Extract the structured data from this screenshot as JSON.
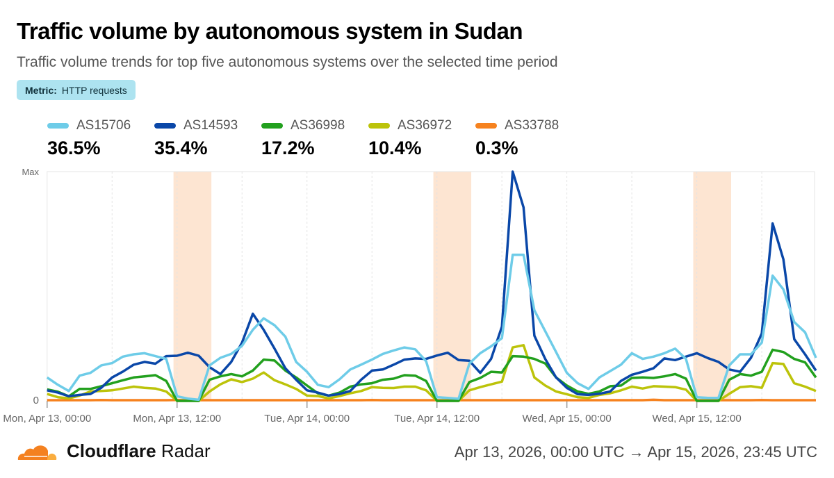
{
  "header": {
    "title": "Traffic volume by autonomous system in Sudan",
    "subtitle": "Traffic volume trends for top five autonomous systems over the selected time period",
    "metric_label": "Metric:",
    "metric_value": "HTTP requests"
  },
  "legend": [
    {
      "name": "AS15706",
      "share": "36.5%",
      "color": "#6ecce8"
    },
    {
      "name": "AS14593",
      "share": "35.4%",
      "color": "#0a47a8"
    },
    {
      "name": "AS36998",
      "share": "17.2%",
      "color": "#22a01e"
    },
    {
      "name": "AS36972",
      "share": "10.4%",
      "color": "#bcc30a"
    },
    {
      "name": "AS33788",
      "share": "0.3%",
      "color": "#f6821f"
    }
  ],
  "chart_data": {
    "type": "line",
    "title": "",
    "xlabel": "",
    "ylabel": "",
    "y_tick_labels": [
      "0",
      "Max"
    ],
    "ylim": [
      0,
      100
    ],
    "x_start": "2026-04-13T00:00Z",
    "x_interval": "1 hour",
    "x_tick_labels": [
      "Mon, Apr 13, 00:00",
      "Mon, Apr 13, 12:00",
      "Tue, Apr 14, 00:00",
      "Tue, Apr 14, 12:00",
      "Wed, Apr 15, 00:00",
      "Wed, Apr 15, 12:00"
    ],
    "x_tick_hours": [
      0,
      12,
      24,
      36,
      48,
      60
    ],
    "highlight_bands_hours": [
      [
        11.67,
        15.17
      ],
      [
        35.67,
        39.17
      ],
      [
        59.67,
        63.17
      ]
    ],
    "highlight_color": "#fde5d2",
    "grid": "vertical dashed",
    "series": [
      {
        "name": "AS15706",
        "color": "#6ecce8",
        "values": [
          10.2,
          7,
          4.3,
          11,
          12.2,
          15.5,
          16.5,
          19.3,
          20.3,
          20.8,
          19.5,
          18.3,
          2,
          1,
          0.5,
          15.5,
          18.8,
          20.5,
          24,
          31,
          36,
          33,
          28,
          17,
          12.7,
          7,
          6,
          9.4,
          13.7,
          15.8,
          18,
          20.5,
          22,
          23.3,
          22.5,
          17.3,
          1.6,
          1.3,
          0.9,
          16.3,
          20.8,
          23.8,
          27.4,
          63.7,
          63.7,
          39.5,
          30.4,
          21.3,
          12.2,
          7.7,
          5.2,
          10.2,
          13,
          15.8,
          20.8,
          18.3,
          19.3,
          20.8,
          22.8,
          18.3,
          1.6,
          1.3,
          1.3,
          15.5,
          20.3,
          20.3,
          25.4,
          54.6,
          48.6,
          34.4,
          29.9,
          18.8
        ]
      },
      {
        "name": "AS14593",
        "color": "#0a47a8",
        "values": [
          4.6,
          3.6,
          2,
          2.6,
          3,
          5.7,
          10.2,
          12.8,
          15.8,
          17,
          16.2,
          19.5,
          19.7,
          21,
          19.7,
          14.7,
          11.7,
          17,
          25.4,
          38,
          31,
          22.8,
          14.2,
          9.2,
          4.6,
          3.6,
          2.3,
          3,
          4.3,
          9.2,
          13.2,
          13.7,
          15.8,
          18,
          18.5,
          18.3,
          19.8,
          21,
          17.8,
          17.5,
          12.2,
          18.3,
          32.4,
          100,
          84.4,
          28.4,
          18.3,
          10.2,
          5.7,
          2.9,
          2.6,
          3.1,
          4.1,
          8.7,
          11.4,
          12.7,
          14.2,
          18.5,
          17.8,
          19.3,
          20.8,
          18.7,
          17,
          13.7,
          12.7,
          18.8,
          29.4,
          77.4,
          61.7,
          26.9,
          20.3,
          13.2
        ]
      },
      {
        "name": "AS36998",
        "color": "#22a01e",
        "values": [
          5,
          4,
          2,
          5.2,
          5.2,
          6.4,
          7.7,
          9,
          10.2,
          10.7,
          11.2,
          8.7,
          0,
          0,
          0,
          9.2,
          10.7,
          11.7,
          10.7,
          13.2,
          18,
          17.6,
          13.2,
          10.2,
          6.7,
          3.3,
          2.3,
          3.6,
          6.2,
          7.2,
          7.7,
          9.2,
          9.7,
          11.2,
          11,
          8.7,
          0,
          0,
          0,
          8.2,
          10,
          12.7,
          12.4,
          19.5,
          19.3,
          18.3,
          16.3,
          10.2,
          6.7,
          4.1,
          3.1,
          4.1,
          6.4,
          6.7,
          10,
          10.2,
          10,
          10.7,
          11.7,
          9.7,
          0,
          0,
          0,
          9.2,
          11.7,
          11,
          12.7,
          22.3,
          21.3,
          18.3,
          16.8,
          10.2
        ]
      },
      {
        "name": "AS36972",
        "color": "#bcc30a",
        "values": [
          3,
          1.6,
          1.1,
          2.3,
          4.1,
          4.3,
          4.6,
          5.4,
          6.2,
          5.7,
          5.4,
          4.1,
          0,
          0,
          0,
          4.1,
          7.2,
          9.4,
          8.2,
          9.7,
          12.4,
          9,
          7.2,
          5.2,
          2.3,
          2.1,
          1.1,
          2.1,
          3.3,
          4.3,
          6,
          5.7,
          5.6,
          6.2,
          6.2,
          4.6,
          0,
          0,
          0,
          4.6,
          6,
          7.2,
          8.4,
          23.3,
          24.3,
          10.2,
          6.7,
          4.1,
          2.9,
          1.6,
          1.3,
          2.6,
          3.3,
          4.6,
          6.2,
          5.4,
          6.4,
          6.2,
          6,
          4.9,
          0,
          0,
          0,
          3.1,
          6,
          6.4,
          5.7,
          16.5,
          16.1,
          7.7,
          6.2,
          4.3
        ]
      },
      {
        "name": "AS33788",
        "color": "#f6821f",
        "values": [
          0.3,
          0.3,
          0.3,
          0.3,
          0.3,
          0.4,
          0.3,
          0.3,
          0.3,
          0.3,
          0.3,
          0.3,
          0.4,
          0.3,
          0.3,
          0.3,
          0.3,
          0.3,
          0.3,
          0.3,
          0.3,
          0.3,
          0.3,
          0.3,
          0.3,
          0.3,
          0.3,
          0.3,
          0.3,
          0.3,
          0.4,
          0.3,
          0.3,
          0.3,
          0.3,
          0.3,
          0.3,
          0.3,
          0.3,
          0.3,
          0.3,
          0.3,
          0.3,
          0.3,
          0.3,
          0.3,
          0.3,
          0.3,
          0.3,
          0.3,
          0.3,
          0.3,
          0.3,
          0.3,
          0.3,
          0.3,
          0.5,
          0.3,
          0.3,
          0.3,
          0.3,
          0.3,
          0.3,
          0.3,
          0.3,
          0.3,
          0.4,
          0.3,
          0.3,
          0.3,
          0.3,
          0.3
        ]
      }
    ]
  },
  "footer": {
    "brand_bold": "Cloudflare",
    "brand_light": "Radar",
    "date_range": "Apr 13, 2026, 00:00 UTC → Apr 15, 2026, 23:45 UTC"
  }
}
